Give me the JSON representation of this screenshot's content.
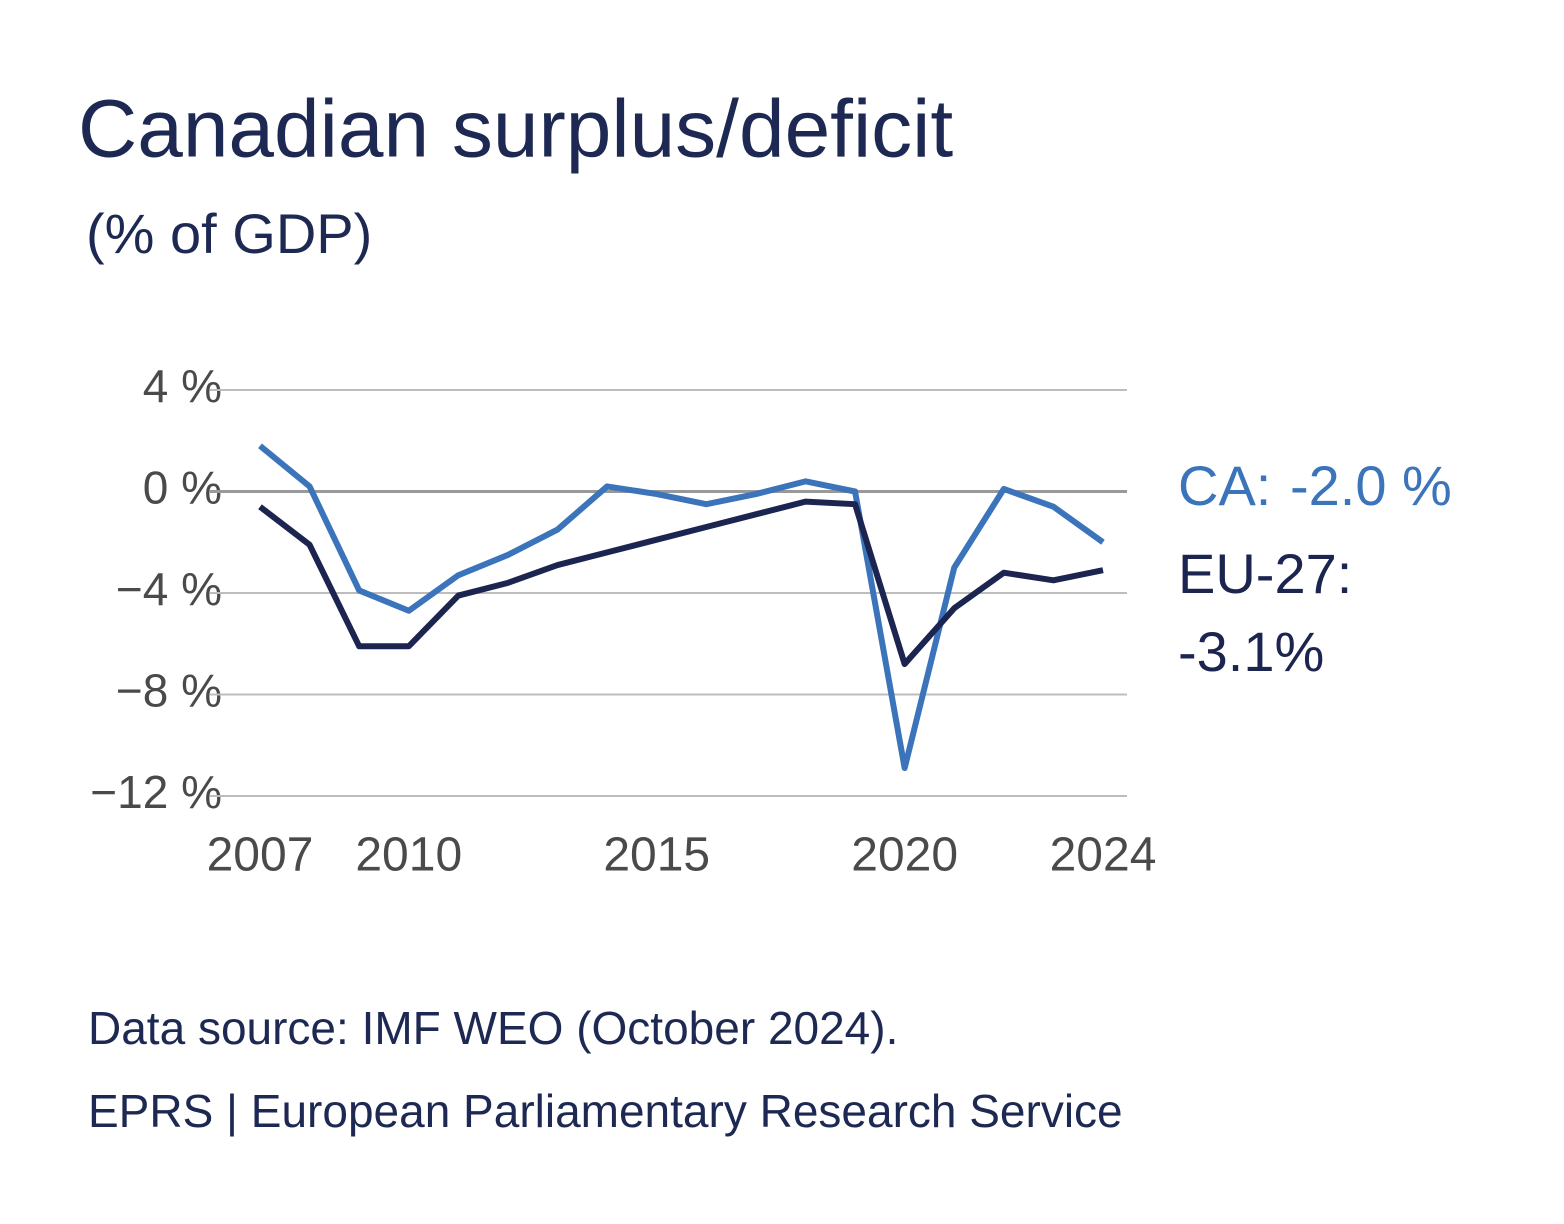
{
  "chart_data": {
    "type": "line",
    "title": "Canadian surplus/deficit",
    "subtitle": "(% of GDP)",
    "x": [
      2007,
      2008,
      2009,
      2010,
      2011,
      2012,
      2013,
      2014,
      2015,
      2016,
      2017,
      2018,
      2019,
      2020,
      2021,
      2022,
      2023,
      2024
    ],
    "xlim": [
      2007,
      2024
    ],
    "xticks": [
      2007,
      2010,
      2015,
      2020,
      2024
    ],
    "ylim": [
      -12,
      4
    ],
    "yticks": [
      {
        "value": 4,
        "label": "4 %"
      },
      {
        "value": 0,
        "label": "0 %"
      },
      {
        "value": -4,
        "label": "−4 %"
      },
      {
        "value": -8,
        "label": "−8 %"
      },
      {
        "value": -12,
        "label": "−12 %"
      }
    ],
    "grid": true,
    "series": [
      {
        "name": "CA:",
        "color": "#3b74ba",
        "values": [
          1.8,
          0.2,
          -3.9,
          -4.7,
          -3.3,
          -2.5,
          -1.5,
          0.2,
          -0.1,
          -0.5,
          -0.1,
          0.4,
          0.0,
          -10.9,
          -3.0,
          0.1,
          -0.6,
          -2.0
        ],
        "value_labels": [
          null,
          null,
          null,
          null,
          null,
          null,
          null,
          null,
          null,
          null,
          null,
          null,
          null,
          null,
          null,
          null,
          null,
          "-2.0 %"
        ]
      },
      {
        "name": "EU-27:",
        "color": "#1c2550",
        "values": [
          -0.6,
          -2.1,
          -6.1,
          -6.1,
          -4.1,
          -3.6,
          -2.9,
          -2.4,
          -1.9,
          -1.4,
          -0.9,
          -0.4,
          -0.5,
          -6.8,
          -4.6,
          -3.2,
          -3.5,
          -3.1
        ],
        "value_labels": [
          null,
          null,
          null,
          null,
          null,
          null,
          null,
          null,
          null,
          null,
          null,
          null,
          null,
          null,
          null,
          null,
          null,
          "-3.1%"
        ]
      }
    ],
    "source": [
      "Data source: IMF WEO (October 2024).",
      "EPRS | European Parliamentary Research Service"
    ]
  }
}
